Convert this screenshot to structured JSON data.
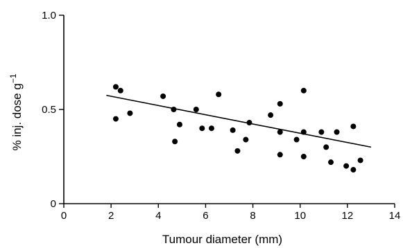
{
  "chart_data": {
    "type": "scatter",
    "xlabel": "Tumour diameter (mm)",
    "ylabel": "% inj. dose g",
    "ylabel_superscript": "−1",
    "xlim": [
      0,
      14
    ],
    "ylim": [
      0,
      1.0
    ],
    "x_ticks": [
      0,
      2,
      4,
      6,
      8,
      10,
      12,
      14
    ],
    "x_tick_labels": [
      "0",
      "2",
      "4",
      "6",
      "8",
      "10",
      "12",
      "14"
    ],
    "y_ticks": [
      0,
      0.5,
      1.0
    ],
    "y_tick_labels": [
      "0",
      "0.5",
      "1.0"
    ],
    "grid": false,
    "series": [
      {
        "points": [
          {
            "x": 2.2,
            "y": 0.62
          },
          {
            "x": 2.4,
            "y": 0.6
          },
          {
            "x": 2.2,
            "y": 0.45
          },
          {
            "x": 2.8,
            "y": 0.48
          },
          {
            "x": 4.2,
            "y": 0.57
          },
          {
            "x": 4.65,
            "y": 0.5
          },
          {
            "x": 4.7,
            "y": 0.33
          },
          {
            "x": 4.9,
            "y": 0.42
          },
          {
            "x": 5.6,
            "y": 0.5
          },
          {
            "x": 5.85,
            "y": 0.4
          },
          {
            "x": 6.25,
            "y": 0.4
          },
          {
            "x": 6.55,
            "y": 0.58
          },
          {
            "x": 7.15,
            "y": 0.39
          },
          {
            "x": 7.35,
            "y": 0.28
          },
          {
            "x": 7.7,
            "y": 0.34
          },
          {
            "x": 7.85,
            "y": 0.43
          },
          {
            "x": 8.75,
            "y": 0.47
          },
          {
            "x": 9.15,
            "y": 0.53
          },
          {
            "x": 9.15,
            "y": 0.38
          },
          {
            "x": 9.15,
            "y": 0.26
          },
          {
            "x": 9.85,
            "y": 0.34
          },
          {
            "x": 10.15,
            "y": 0.38
          },
          {
            "x": 10.15,
            "y": 0.6
          },
          {
            "x": 10.15,
            "y": 0.25
          },
          {
            "x": 10.9,
            "y": 0.38
          },
          {
            "x": 11.1,
            "y": 0.3
          },
          {
            "x": 11.3,
            "y": 0.22
          },
          {
            "x": 11.55,
            "y": 0.38
          },
          {
            "x": 11.95,
            "y": 0.2
          },
          {
            "x": 12.25,
            "y": 0.41
          },
          {
            "x": 12.25,
            "y": 0.18
          },
          {
            "x": 12.55,
            "y": 0.23
          }
        ]
      }
    ],
    "trend_line": {
      "x": [
        1.8,
        13.0
      ],
      "y": [
        0.575,
        0.3
      ]
    }
  }
}
